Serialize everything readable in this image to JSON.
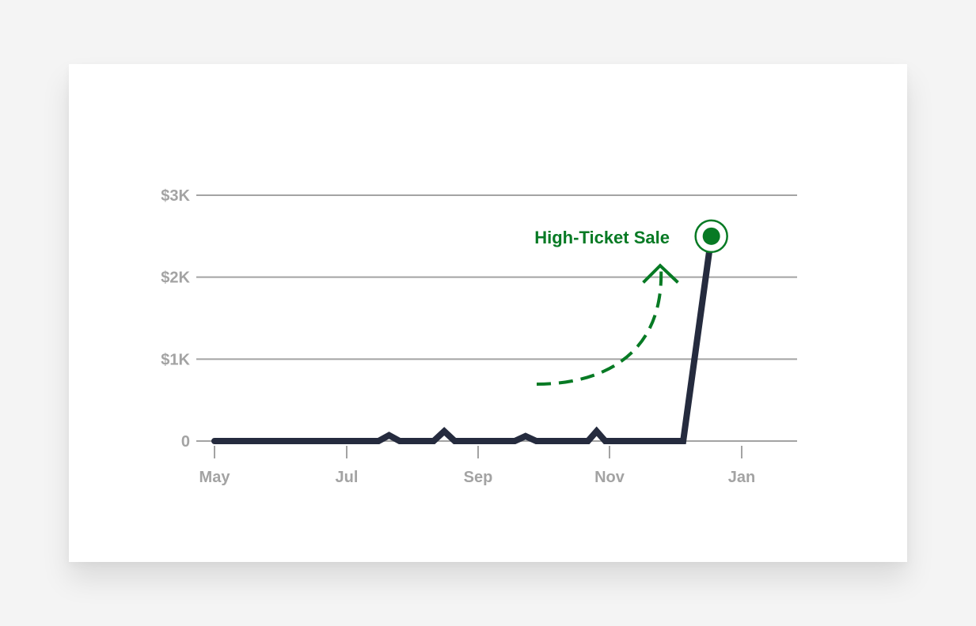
{
  "chart_data": {
    "type": "line",
    "title": "",
    "xlabel": "",
    "ylabel": "",
    "x_ticks": [
      "May",
      "Jul",
      "Sep",
      "Nov",
      "Jan"
    ],
    "y_ticks": [
      "0",
      "$1K",
      "$2K",
      "$3K"
    ],
    "y_tick_values": [
      0,
      1000,
      2000,
      3000
    ],
    "ylim": [
      0,
      3000
    ],
    "grid": "horizontal",
    "series": [
      {
        "x": [
          "May 1",
          "Jul 16",
          "Jul 21",
          "Jul 26",
          "Aug 11",
          "Aug 16",
          "Aug 21",
          "Sep 18",
          "Sep 23",
          "Sep 28",
          "Oct 22",
          "Oct 26",
          "Oct 30",
          "Dec 5",
          "Dec 18"
        ],
        "values": [
          0,
          0,
          70,
          0,
          0,
          120,
          0,
          0,
          60,
          0,
          0,
          120,
          0,
          0,
          2500
        ]
      }
    ],
    "annotation": {
      "text": "High-Ticket Sale",
      "target": {
        "x": "Dec 18",
        "y": 2500
      }
    },
    "colors": {
      "line": "#252b3e",
      "highlight": "#077a24",
      "grid": "#a3a3a3",
      "tick_text": "#a3a3a3"
    }
  }
}
